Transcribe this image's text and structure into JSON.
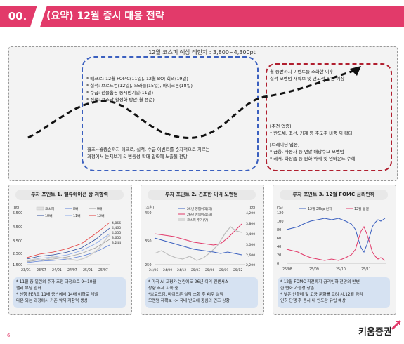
{
  "header": {
    "number": "00.",
    "title": "(요약) 12월 증시 대응 전략"
  },
  "top": {
    "range_label": "12월 코스피 예상 레인지 : 3,800~4,300pt",
    "blue_lines": [
      "* 매크로: 12월 FOMC(11일), 12월 BOJ 회의(19일)",
      "* 실적: 브로드컴(12일), 오라클(15일), 마이크론(18일)",
      "* 수급: 선물옵션 동시만기일(11일)",
      "* 정책: 코스닥 활성화 방안(월 중순)"
    ],
    "blue_bottom": [
      "월초~월중순까지 매크로, 실적, 수급 이벤트를 순차적으로 치르는",
      "과정에서 눈치보기 & 변동성 확대 압력에 노출될 전망"
    ],
    "red_top": [
      "월 중반까지 이벤트를 소화한 이후,",
      "실적 모멘텀 재확보 및 연고점 탈환 예상"
    ],
    "red_sections": [
      {
        "title": "[추천 업종]",
        "items": [
          "* 반도체, 조선, 기계 등 주도주 비중 재 확대"
        ]
      },
      {
        "title": "[트레이딩 업종]",
        "items": [
          "* 금융, 자동차 등 연말 배당수요 모멘텀",
          "* 레저, 화장품 등 원화 약세 및 인바운드 수혜"
        ]
      }
    ]
  },
  "panels": [
    {
      "title": "투자 포인트 1. 밸류에이션 상 저항력",
      "notes": [
        "* 11월 중 일련의 주가 조정 과정으로 9~10월",
        "  랠리 부담 완화",
        "* 선행 PER도 11배 중반에서 14배 이하로 레벨",
        "  다운 되는 과정에서 기존 악재 저항력 생성"
      ],
      "chart": {
        "unit": "(pt)",
        "legend": [
          "코스피",
          "8배",
          "9배",
          "10배",
          "11배",
          "12배"
        ],
        "y_ticks": [
          "5,500",
          "4,500",
          "3,500",
          "2,500",
          "1,500"
        ],
        "x_ticks": [
          "23/01",
          "23/07",
          "24/01",
          "24/07",
          "25/01",
          "25/07"
        ],
        "end_labels": [
          "4,866",
          "4,460",
          "4,055",
          "3,650",
          "3,244"
        ],
        "colors": {
          "kospi": "#e0e0e0",
          "b8": "#5b7fd6",
          "b9": "#9e9e9e",
          "b10": "#2f4f9e",
          "b11": "#8aa8e8",
          "b12": "#e23a3a"
        }
      }
    },
    {
      "title": "투자 포인트 2. 견조한 이익 모멘텀",
      "notes": [
        "* 미국 AI 고평가 논란에도 26년 이익 컨센서스",
        "  상향 추세 지속 중",
        "*브로드컴, 마이크론 실적 소화 후 AI주 실적",
        "  모멘텀 재확보 -> 국내 반도체 중심의 견조 상향"
      ],
      "chart": {
        "unit_left": "(조원)",
        "unit_right": "(pt)",
        "legend": [
          "25년 영업이익(좌)",
          "26년 영업이익(좌)",
          "코스피 주가(우)"
        ],
        "y_left": [
          "450",
          "350",
          "250"
        ],
        "y_right": [
          "4,200",
          "3,800",
          "3,400",
          "3,000",
          "2,600",
          "2,200"
        ],
        "x_ticks": [
          "24/06",
          "24/09",
          "24/12",
          "25/03",
          "25/06",
          "25/09",
          "25/12"
        ],
        "colors": {
          "op25": "#3a5fbf",
          "op26": "#e23a6a",
          "kospi": "#bdbdbd"
        }
      }
    },
    {
      "title": "투자 포인트 3. 12월 FOMC 금리인하",
      "notes": [
        "* 12월 FOMC 직전까지 금리인하 전망의 반변",
        "  한 변화 가능성 상존",
        "* 낮은 인플레 및 고용 둔화를 고려 시,12월 금리",
        "  인하 단행 후 증시 내 안도감 유입 예상"
      ],
      "chart": {
        "unit": "(%)",
        "legend": [
          "12월 25bp 인하",
          "12월 동결"
        ],
        "y_ticks": [
          "120",
          "100",
          "80",
          "60",
          "40",
          "20",
          "0"
        ],
        "x_ticks": [
          "25/08",
          "25/09",
          "25/10",
          "25/11"
        ],
        "colors": {
          "cut": "#3a5fbf",
          "hold": "#e23a6a"
        }
      }
    }
  ],
  "footer": {
    "page": "6",
    "logo": "키움증권"
  }
}
